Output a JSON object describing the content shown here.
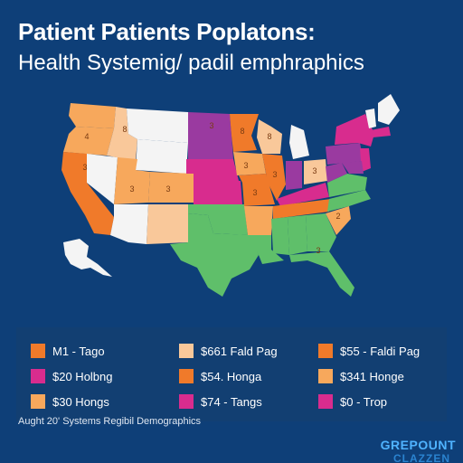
{
  "header": {
    "title": "Patient Patients Poplatons:",
    "subtitle": "Health Systemig/ padil emphraphics"
  },
  "map": {
    "state_labels": [
      "4",
      "3",
      "8",
      "3",
      "3",
      "3",
      "8",
      "3",
      "8",
      "3",
      "3",
      "3",
      "2",
      "3"
    ],
    "colors": {
      "orange_dark": "#f07a2a",
      "orange_light": "#f7a85c",
      "peach": "#f9c89a",
      "magenta": "#d82c8e",
      "purple": "#9a3aa0",
      "green": "#5fbf6a",
      "white": "#f4f4f4"
    }
  },
  "legend": {
    "items": [
      {
        "label": "M1 - Tago",
        "color": "#f07a2a"
      },
      {
        "label": "$661 Fald Pag",
        "color": "#f9c89a"
      },
      {
        "label": "$55 - Faldi Pag",
        "color": "#f07a2a"
      },
      {
        "label": "$20 Holbng",
        "color": "#d82c8e"
      },
      {
        "label": "$54. Honga",
        "color": "#f07a2a"
      },
      {
        "label": "$341 Honge",
        "color": "#f7a85c"
      },
      {
        "label": "$30 Hongs",
        "color": "#f7a85c"
      },
      {
        "label": "$74 - Tangs",
        "color": "#d82c8e"
      },
      {
        "label": "$0 - Trop",
        "color": "#d82c8e"
      }
    ]
  },
  "footer": {
    "source": "Aught 20' Systems Regibil Demographics",
    "brand_line1": "GREPOUNT",
    "brand_line2": "CLAZZEN"
  }
}
